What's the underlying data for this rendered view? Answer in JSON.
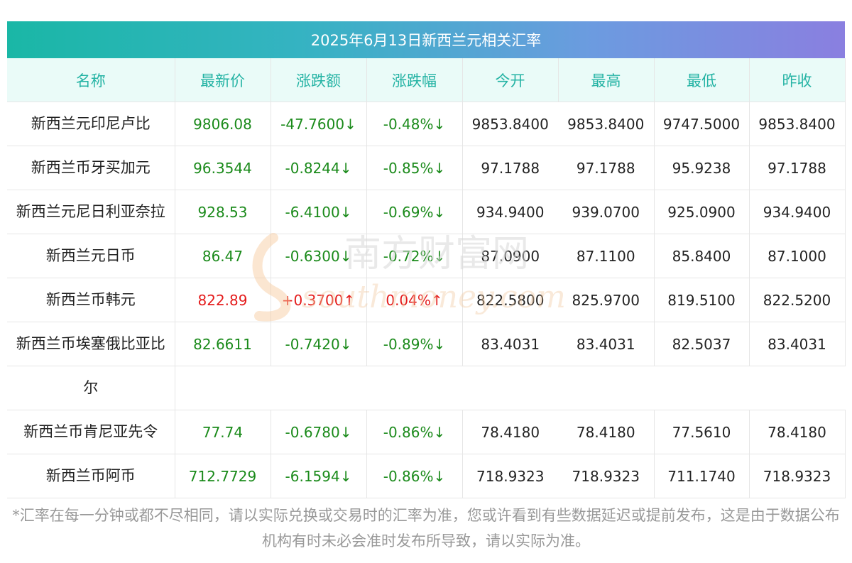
{
  "title": "2025年6月13日新西兰元相关汇率",
  "columns": [
    "名称",
    "最新价",
    "涨跌额",
    "涨跌幅",
    "今开",
    "最高",
    "最低",
    "昨收"
  ],
  "rows": [
    {
      "name": "新西兰元印尼卢比",
      "latest": "9806.08",
      "change": "-47.7600↓",
      "pct": "-0.48%↓",
      "open": "9853.8400",
      "high": "9853.8400",
      "low": "9747.5000",
      "prev": "9853.8400",
      "direction": "down"
    },
    {
      "name": "新西兰币牙买加元",
      "latest": "96.3544",
      "change": "-0.8244↓",
      "pct": "-0.85%↓",
      "open": "97.1788",
      "high": "97.1788",
      "low": "95.9238",
      "prev": "97.1788",
      "direction": "down"
    },
    {
      "name": "新西兰元尼日利亚奈拉",
      "latest": "928.53",
      "change": "-6.4100↓",
      "pct": "-0.69%↓",
      "open": "934.9400",
      "high": "939.0700",
      "low": "925.0900",
      "prev": "934.9400",
      "direction": "down"
    },
    {
      "name": "新西兰元日币",
      "latest": "86.47",
      "change": "-0.6300↓",
      "pct": "-0.72%↓",
      "open": "87.0900",
      "high": "87.1100",
      "low": "85.8400",
      "prev": "87.1000",
      "direction": "down"
    },
    {
      "name": "新西兰币韩元",
      "latest": "822.89",
      "change": "+0.3700↑",
      "pct": "0.04%↑",
      "open": "822.5800",
      "high": "825.9700",
      "low": "819.5100",
      "prev": "822.5200",
      "direction": "up"
    },
    {
      "name": "新西兰币埃塞俄比亚比",
      "name_cont": "尔",
      "latest": "82.6611",
      "change": "-0.7420↓",
      "pct": "-0.89%↓",
      "open": "83.4031",
      "high": "83.4031",
      "low": "82.5037",
      "prev": "83.4031",
      "direction": "down"
    },
    {
      "name": "新西兰币肯尼亚先令",
      "latest": "77.74",
      "change": "-0.6780↓",
      "pct": "-0.86%↓",
      "open": "78.4180",
      "high": "78.4180",
      "low": "77.5610",
      "prev": "78.4180",
      "direction": "down"
    },
    {
      "name": "新西兰币阿币",
      "latest": "712.7729",
      "change": "-6.1594↓",
      "pct": "-0.86%↓",
      "open": "718.9323",
      "high": "718.9323",
      "low": "711.1740",
      "prev": "718.9323",
      "direction": "down"
    }
  ],
  "watermark": {
    "cn": "南方财富网",
    "en": "southmoney.com"
  },
  "footnote": "*汇率在每一分钟或都不尽相同，请以实际兑换或交易时的汇率为准，您或许看到有些数据延迟或提前发布，这是由于数据公布机构有时未必会准时发布所导致，请以实际为准。",
  "colors": {
    "up": "#e41b1b",
    "down": "#1a8a1a",
    "header_text": "#24b3a4",
    "header_bg": "#eafbf8"
  }
}
